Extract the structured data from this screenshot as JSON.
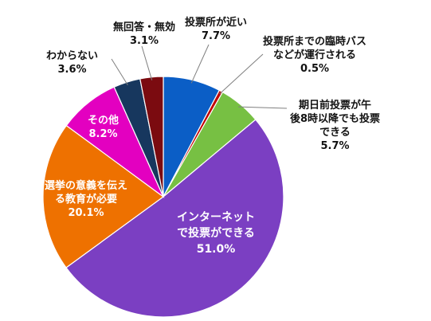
{
  "chart_data": {
    "type": "pie",
    "slices": [
      {
        "name": "投票所が近い",
        "value": 7.7,
        "value_label": "7.7%",
        "color": "#0B5EC6"
      },
      {
        "name": "投票所までの臨時バスなどが運行される",
        "value": 0.5,
        "value_label": "0.5%",
        "color": "#C00000"
      },
      {
        "name": "期日前投票が午後8時以降でも投票できる",
        "value": 5.7,
        "value_label": "5.7%",
        "color": "#77C043"
      },
      {
        "name": "インターネットで投票ができる",
        "value": 51.0,
        "value_label": "51.0%",
        "color": "#7B3FC2"
      },
      {
        "name": "選挙の意義を伝える教育が必要",
        "value": 20.1,
        "value_label": "20.1%",
        "color": "#EE7100"
      },
      {
        "name": "その他",
        "value": 8.2,
        "value_label": "8.2%",
        "color": "#E300C0"
      },
      {
        "name": "わからない",
        "value": 3.6,
        "value_label": "3.6%",
        "color": "#17375E"
      },
      {
        "name": "無回答・無効",
        "value": 3.1,
        "value_label": "3.1%",
        "color": "#7B0B10"
      }
    ],
    "start_angle_deg": 0,
    "direction": "clockwise"
  }
}
